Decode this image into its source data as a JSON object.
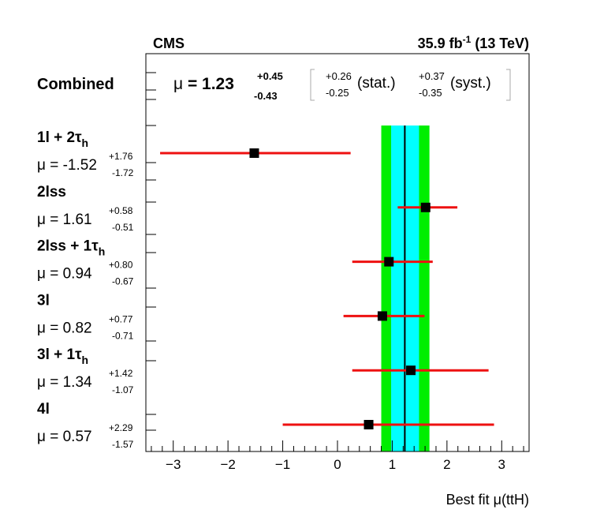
{
  "header": {
    "experiment": "CMS",
    "lumi_value": "35.9 fb",
    "lumi_exp": "-1",
    "lumi_energy": " (13 TeV)"
  },
  "combined": {
    "label": "Combined",
    "mu_symbol": "μ",
    "mu_text": " = 1.23",
    "err_up": "+0.45",
    "err_down": "-0.43",
    "stat_up": "+0.26",
    "stat_down": "-0.25",
    "stat_label": "(stat.)",
    "syst_up": "+0.37",
    "syst_down": "-0.35",
    "syst_label": "(syst.)"
  },
  "chart_data": {
    "type": "scatter",
    "title": "",
    "xlabel_prefix": "Best fit ",
    "xlabel_mu": "μ",
    "xlabel_suffix": "(ttH)",
    "xlim": [
      -3.5,
      3.5
    ],
    "xticks": [
      -3,
      -2,
      -1,
      0,
      1,
      2,
      3
    ],
    "combined": {
      "value": 1.23,
      "total_low": 0.8,
      "total_high": 1.68,
      "stat_low": 0.98,
      "stat_high": 1.49
    },
    "band_colors": {
      "total": "#00ee00",
      "stat": "#00ffff"
    },
    "marker_color": "#000000",
    "errorbar_color": "#ee1111",
    "categories": [
      {
        "name_main": "1l + 2τ",
        "name_sub": "h",
        "mu_text": "μ = -1.52",
        "err_up": "+1.76",
        "err_down": "-1.72",
        "value": -1.52,
        "low": -3.24,
        "high": 0.24
      },
      {
        "name_main": "2lss",
        "name_sub": "",
        "mu_text": "μ = 1.61",
        "err_up": "+0.58",
        "err_down": "-0.51",
        "value": 1.61,
        "low": 1.1,
        "high": 2.19
      },
      {
        "name_main": "2lss + 1τ",
        "name_sub": "h",
        "mu_text": "μ = 0.94",
        "err_up": "+0.80",
        "err_down": "-0.67",
        "value": 0.94,
        "low": 0.27,
        "high": 1.74
      },
      {
        "name_main": "3l",
        "name_sub": "",
        "mu_text": "μ = 0.82",
        "err_up": "+0.77",
        "err_down": "-0.71",
        "value": 0.82,
        "low": 0.11,
        "high": 1.59
      },
      {
        "name_main": "3l + 1τ",
        "name_sub": "h",
        "mu_text": "μ = 1.34",
        "err_up": "+1.42",
        "err_down": "-1.07",
        "value": 1.34,
        "low": 0.27,
        "high": 2.76
      },
      {
        "name_main": "4l",
        "name_sub": "",
        "mu_text": "μ = 0.57",
        "err_up": "+2.29",
        "err_down": "-1.57",
        "value": 0.57,
        "low": -1.0,
        "high": 2.86
      }
    ]
  }
}
